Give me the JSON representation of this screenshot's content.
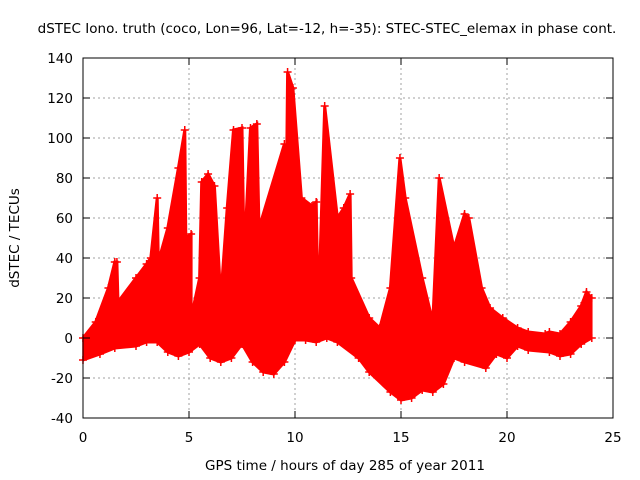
{
  "chart_data": {
    "type": "area",
    "title": "dSTEC Iono. truth (coco, Lon=96, Lat=-12, h=-35): STEC-STEC_elemax in phase cont.",
    "xlabel": "GPS time / hours of day 285 of year 2011",
    "ylabel": "dSTEC  / TECUs",
    "xlim": [
      0,
      25
    ],
    "ylim": [
      -40,
      140
    ],
    "xticks": [
      "0",
      "5",
      "10",
      "15",
      "20",
      "25"
    ],
    "yticks": [
      "-40",
      "-20",
      "0",
      "20",
      "40",
      "60",
      "80",
      "100",
      "120",
      "140"
    ],
    "grid": true,
    "legend": "none",
    "series_color": "#ff0000",
    "upper": [
      [
        0,
        0
      ],
      [
        0.6,
        8
      ],
      [
        1.2,
        25
      ],
      [
        1.5,
        38
      ],
      [
        1.6,
        38
      ],
      [
        1.65,
        18
      ],
      [
        2.5,
        30
      ],
      [
        3.0,
        37
      ],
      [
        3.2,
        40
      ],
      [
        3.5,
        70
      ],
      [
        3.55,
        38
      ],
      [
        4.0,
        55
      ],
      [
        4.5,
        85
      ],
      [
        4.8,
        104
      ],
      [
        4.85,
        50
      ],
      [
        5.1,
        52
      ],
      [
        5.1,
        10
      ],
      [
        5.5,
        30
      ],
      [
        5.6,
        78
      ],
      [
        5.9,
        82
      ],
      [
        6.2,
        76
      ],
      [
        6.5,
        20
      ],
      [
        6.8,
        65
      ],
      [
        7.1,
        104
      ],
      [
        7.5,
        105
      ],
      [
        7.6,
        40
      ],
      [
        7.9,
        105
      ],
      [
        8.2,
        107
      ],
      [
        8.3,
        55
      ],
      [
        9.5,
        97
      ],
      [
        9.55,
        30
      ],
      [
        9.65,
        133
      ],
      [
        9.9,
        125
      ],
      [
        10.3,
        70
      ],
      [
        10.8,
        66
      ],
      [
        11.0,
        68
      ],
      [
        11.1,
        10
      ],
      [
        11.4,
        116
      ],
      [
        12.0,
        60
      ],
      [
        12.3,
        65
      ],
      [
        12.6,
        72
      ],
      [
        12.65,
        30
      ],
      [
        13.5,
        10
      ],
      [
        14.0,
        5
      ],
      [
        14.5,
        25
      ],
      [
        14.95,
        90
      ],
      [
        15.2,
        70
      ],
      [
        16.0,
        30
      ],
      [
        16.5,
        8
      ],
      [
        16.8,
        80
      ],
      [
        17.5,
        45
      ],
      [
        18.0,
        62
      ],
      [
        18.2,
        60
      ],
      [
        18.8,
        25
      ],
      [
        19.2,
        15
      ],
      [
        19.8,
        10
      ],
      [
        20.5,
        5
      ],
      [
        21.0,
        3
      ],
      [
        21.8,
        2
      ],
      [
        22.0,
        3
      ],
      [
        22.5,
        2
      ],
      [
        23.0,
        8
      ],
      [
        23.5,
        16
      ],
      [
        23.75,
        23
      ],
      [
        24.0,
        20
      ]
    ],
    "lower": [
      [
        0,
        -11
      ],
      [
        0.8,
        -8
      ],
      [
        1.5,
        -5
      ],
      [
        2.5,
        -4
      ],
      [
        3.0,
        -2
      ],
      [
        3.5,
        -2
      ],
      [
        4.0,
        -7
      ],
      [
        4.5,
        -9
      ],
      [
        5.0,
        -7
      ],
      [
        5.5,
        -3
      ],
      [
        6.0,
        -10
      ],
      [
        6.5,
        -12
      ],
      [
        7.0,
        -10
      ],
      [
        7.5,
        -3
      ],
      [
        8.0,
        -12
      ],
      [
        8.5,
        -17
      ],
      [
        9.0,
        -18
      ],
      [
        9.5,
        -12
      ],
      [
        10.0,
        -1
      ],
      [
        10.5,
        -1
      ],
      [
        11.0,
        -2
      ],
      [
        11.5,
        0
      ],
      [
        12.0,
        -2
      ],
      [
        13.0,
        -10
      ],
      [
        13.5,
        -17
      ],
      [
        14.5,
        -27
      ],
      [
        15.0,
        -31
      ],
      [
        15.5,
        -30
      ],
      [
        16.0,
        -26
      ],
      [
        16.5,
        -27
      ],
      [
        17.0,
        -23
      ],
      [
        17.5,
        -10
      ],
      [
        18.0,
        -12
      ],
      [
        19.0,
        -15
      ],
      [
        19.5,
        -8
      ],
      [
        20.0,
        -10
      ],
      [
        20.5,
        -4
      ],
      [
        21.0,
        -6
      ],
      [
        22.0,
        -7
      ],
      [
        22.5,
        -9
      ],
      [
        23.0,
        -8
      ],
      [
        23.5,
        -3
      ],
      [
        24.0,
        0
      ]
    ]
  }
}
